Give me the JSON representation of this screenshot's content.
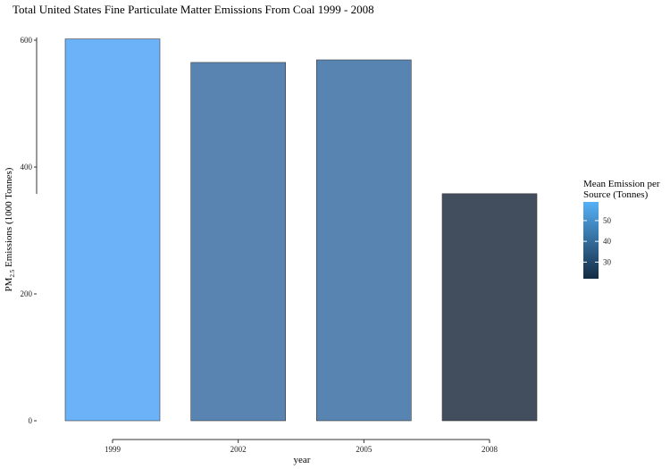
{
  "chart_data": {
    "type": "bar",
    "title": "Total United States Fine Particulate Matter Emissions From Coal 1999 - 2008",
    "xlabel": "year",
    "ylabel": {
      "prefix": "PM",
      "subscript": "2.5",
      "suffix": " Emissions (1000 Tonnes)"
    },
    "categories": [
      "1999",
      "2002",
      "2005",
      "2008"
    ],
    "values": [
      602,
      565,
      569,
      358
    ],
    "ylim": [
      0,
      600
    ],
    "yticks": [
      0,
      200,
      400,
      600
    ],
    "grid": false,
    "fill_by": {
      "name": "Mean Emission per Source (Tonnes)",
      "title_lines": [
        "Mean Emission per",
        "Source (Tonnes)"
      ],
      "values": [
        58,
        46,
        47,
        29
      ],
      "range": [
        22,
        59
      ],
      "ticks": [
        30,
        40,
        50
      ],
      "colors": {
        "low": "#132b43",
        "high": "#56b1f7"
      }
    },
    "bar_fill_colors": [
      "#6cb2f8",
      "#5984b1",
      "#5884b1",
      "#424d5e"
    ],
    "legend_position": "right"
  }
}
